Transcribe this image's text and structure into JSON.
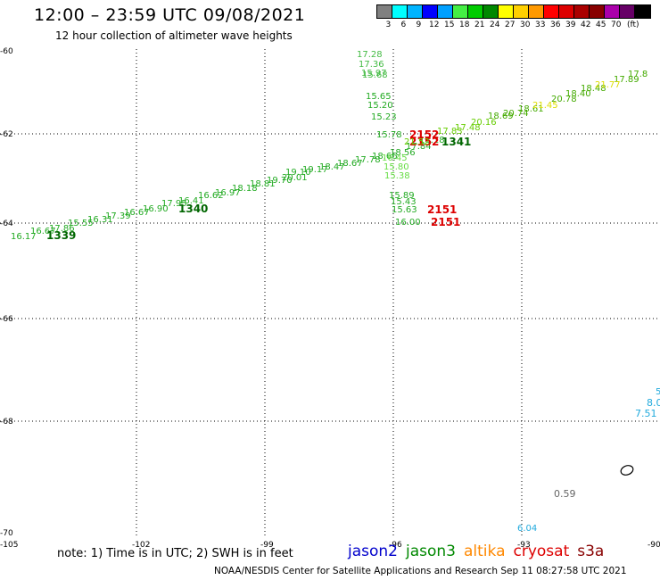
{
  "title": "12:00 – 23:59 UTC 09/08/2021",
  "subtitle": "12 hour collection of altimeter wave heights",
  "legend": {
    "colors": [
      "#808080",
      "#00ffff",
      "#00b4ff",
      "#0000ff",
      "#00a0ff",
      "#44ee44",
      "#00cc00",
      "#008800",
      "#ffff00",
      "#ffd000",
      "#ff9900",
      "#ff0000",
      "#dd0000",
      "#aa0000",
      "#880000",
      "#aa00aa",
      "#660066",
      "#000000"
    ],
    "labels": [
      "3",
      "6",
      "9",
      "12",
      "15",
      "18",
      "21",
      "24",
      "27",
      "30",
      "33",
      "36",
      "39",
      "42",
      "45",
      "70",
      "(ft)"
    ]
  },
  "axes": {
    "lat_labels": [
      "-60",
      "-62",
      "-64",
      "-66",
      "-68",
      "-70"
    ],
    "lon_labels": [
      "-105",
      "-102",
      "-99",
      "-96",
      "-93",
      "-90"
    ]
  },
  "tracks": {
    "green_values": [
      "16.17",
      "16.67",
      "17.86",
      "15.55",
      "16.31",
      "17.39",
      "16.67",
      "16.90",
      "17.95",
      "16.41",
      "16.62",
      "16.97",
      "18.18",
      "18.81",
      "19.70",
      "20.01",
      "19.10",
      "19.17",
      "18.47",
      "18.67",
      "17.78",
      "18.66",
      "18.56",
      "17.84",
      "18.18",
      "17.83",
      "17.48",
      "20.16",
      "18.69",
      "20.74",
      "18.61",
      "20.78",
      "18.40",
      "18.48",
      "17.89",
      "17.8"
    ],
    "yellow_values": [
      "21.45",
      "21.77"
    ],
    "north_values": [
      "17.28",
      "17.36",
      "15.97",
      "15.68",
      "15.65",
      "15.20",
      "15.23",
      "15.78",
      "16.45",
      "15.80",
      "15.38",
      "15.89",
      "15.43",
      "15.63",
      "16.00"
    ],
    "time_labels_dark": [
      "1339",
      "1340",
      "1341"
    ],
    "time_labels_red": [
      "2152",
      "2152",
      "2151",
      "2151"
    ],
    "cyan_values": [
      "5",
      "8.0",
      "7.51",
      "6.04"
    ],
    "gray_values": [
      "0.59"
    ],
    "lime_values": [
      "21.52"
    ]
  },
  "footer": {
    "note": "note: 1) Time is in UTC; 2) SWH is in feet",
    "satellites": [
      {
        "name": "jason2",
        "color": "#0000cc"
      },
      {
        "name": "jason3",
        "color": "#008800"
      },
      {
        "name": "altika",
        "color": "#ff8800"
      },
      {
        "name": "cryosat",
        "color": "#dd0000"
      },
      {
        "name": "s3a",
        "color": "#880000"
      }
    ],
    "credit": "NOAA/NESDIS Center for Satellite Applications and Research     Sep 11 08:27:58 UTC 2021"
  }
}
